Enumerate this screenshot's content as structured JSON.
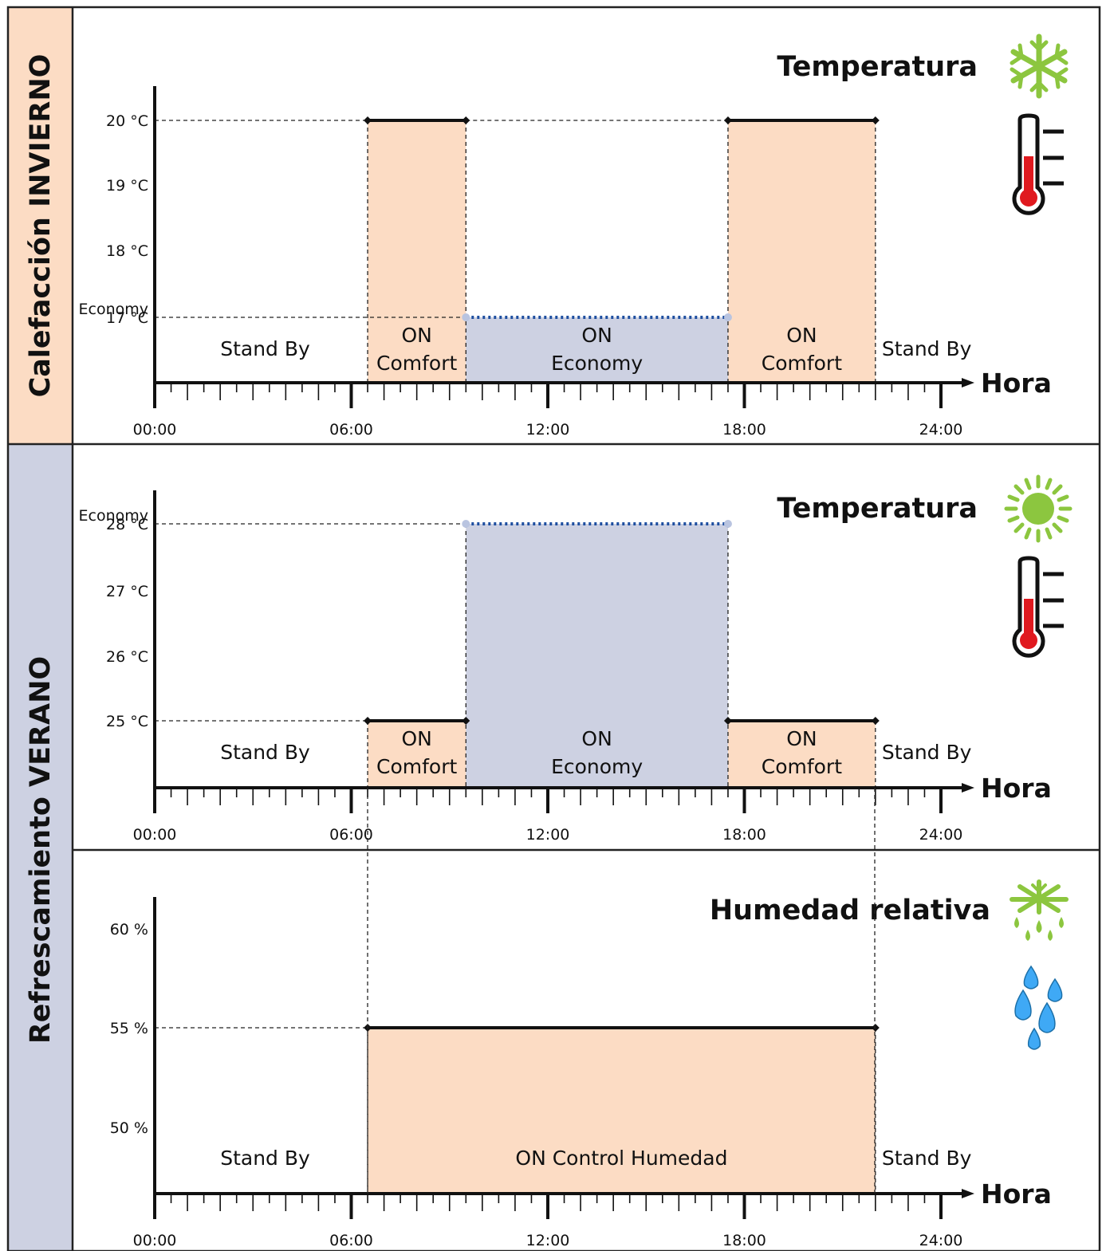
{
  "colors": {
    "comfort_fill": "#fcdcc4",
    "economy_fill": "#cdd1e2",
    "winter_side": "#fcdcc4",
    "summer_side": "#cdd1e2",
    "icon_green": "#8cc63f",
    "thermo_red": "#e0191f",
    "drop_blue": "#3fa9f5",
    "economy_line": "#1e4fa0"
  },
  "sections": {
    "winter": "Calefacción INVIERNO",
    "summer": "Refrescamiento VERANO"
  },
  "chart_data": [
    {
      "id": "winter",
      "type": "step",
      "title": "Temperatura",
      "xlabel": "Hora",
      "icon": "snowflake-icon",
      "icon2": "thermometer-icon",
      "x_tick_labels": [
        "00:00",
        "06:00",
        "12:00",
        "18:00",
        "24:00"
      ],
      "xlim": [
        0,
        24
      ],
      "ylim": [
        16,
        21
      ],
      "y_ticks": [
        {
          "value": 20,
          "label": "20 °C"
        },
        {
          "value": 19,
          "label": "19 °C"
        },
        {
          "value": 18,
          "label": "18 °C"
        },
        {
          "value": 17,
          "label": "17 °C",
          "label_above": "Economy"
        }
      ],
      "ref_lines": [
        20,
        17
      ],
      "bands": [
        {
          "start": 6.5,
          "end": 9.5,
          "level": 20,
          "kind": "comfort",
          "line": "solid",
          "label1": "ON",
          "label2": "Comfort"
        },
        {
          "start": 9.5,
          "end": 17.5,
          "level": 17,
          "kind": "economy",
          "line": "dotted",
          "label1": "ON",
          "label2": "Economy"
        },
        {
          "start": 17.5,
          "end": 22,
          "level": 20,
          "kind": "comfort",
          "line": "solid",
          "label1": "ON",
          "label2": "Comfort"
        }
      ],
      "standby": [
        {
          "start": 0,
          "end": 6.5,
          "label": "Stand By"
        },
        {
          "start": 22,
          "end": 24,
          "label": "Stand By"
        }
      ]
    },
    {
      "id": "summer-temp",
      "type": "step",
      "title": "Temperatura",
      "xlabel": "Hora",
      "icon": "sun-icon",
      "icon2": "thermometer-icon",
      "x_tick_labels": [
        "00:00",
        "06:00",
        "12:00",
        "18:00",
        "24:00"
      ],
      "xlim": [
        0,
        24
      ],
      "ylim": [
        24,
        29
      ],
      "y_ticks": [
        {
          "value": 28,
          "label": "28 °C",
          "label_above": "Economy"
        },
        {
          "value": 27,
          "label": "27 °C"
        },
        {
          "value": 26,
          "label": "26 °C"
        },
        {
          "value": 25,
          "label": "25 °C"
        }
      ],
      "ref_lines": [
        28,
        25
      ],
      "bands": [
        {
          "start": 6.5,
          "end": 9.5,
          "level": 25,
          "kind": "comfort",
          "line": "solid",
          "label1": "ON",
          "label2": "Comfort"
        },
        {
          "start": 9.5,
          "end": 17.5,
          "level": 28,
          "kind": "economy",
          "line": "dotted",
          "label1": "ON",
          "label2": "Economy"
        },
        {
          "start": 17.5,
          "end": 22,
          "level": 25,
          "kind": "comfort",
          "line": "solid",
          "label1": "ON",
          "label2": "Comfort"
        }
      ],
      "standby": [
        {
          "start": 0,
          "end": 6.5,
          "label": "Stand By"
        },
        {
          "start": 22,
          "end": 24,
          "label": "Stand By"
        }
      ]
    },
    {
      "id": "summer-hum",
      "type": "step",
      "title": "Humedad relativa",
      "xlabel": "Hora",
      "icon": "snowflake-drops-icon",
      "icon2": "water-drops-icon",
      "x_tick_labels": [
        "00:00",
        "06:00",
        "12:00",
        "18:00",
        "24:00"
      ],
      "xlim": [
        0,
        24
      ],
      "ylim": [
        45,
        62
      ],
      "y_ticks": [
        {
          "value": 60,
          "label": "60 %"
        },
        {
          "value": 55,
          "label": "55 %"
        },
        {
          "value": 50,
          "label": "50 %"
        }
      ],
      "ref_lines": [
        55
      ],
      "bands": [
        {
          "start": 6.5,
          "end": 22,
          "level": 55,
          "kind": "comfort",
          "line": "solid",
          "label1": "ON Control Humedad",
          "label2": ""
        }
      ],
      "standby": [
        {
          "start": 0,
          "end": 6.5,
          "label": "Stand By"
        },
        {
          "start": 22,
          "end": 24,
          "label": "Stand By"
        }
      ]
    }
  ]
}
